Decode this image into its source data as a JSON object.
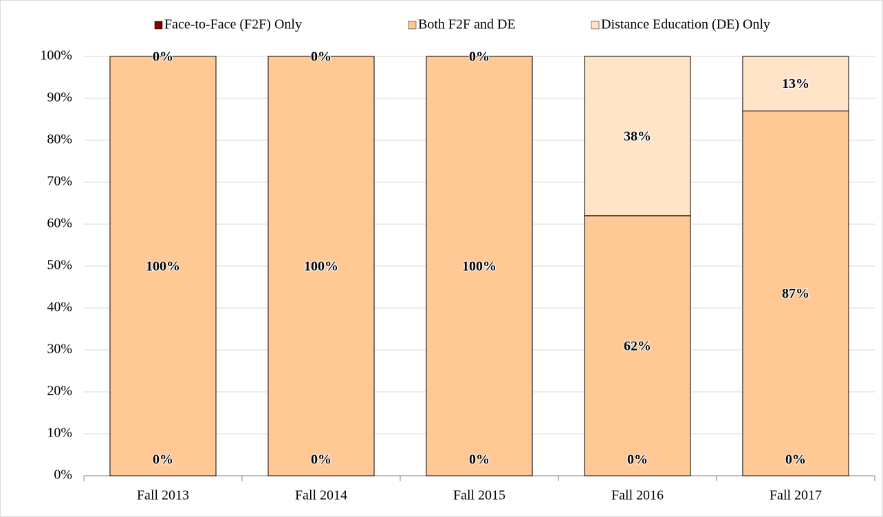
{
  "chart_data": {
    "type": "stacked_bar",
    "categories": [
      "Fall 2013",
      "Fall 2014",
      "Fall 2015",
      "Fall 2016",
      "Fall 2017"
    ],
    "series": [
      {
        "name": "Face-to-Face (F2F) Only",
        "color": "#7f0000",
        "values": [
          0,
          0,
          0,
          0,
          0
        ],
        "value_labels": [
          "0%",
          "0%",
          "0%",
          "0%",
          "0%"
        ]
      },
      {
        "name": "Both F2F and DE",
        "color": "#ffc894",
        "values": [
          100,
          100,
          100,
          62,
          87
        ],
        "value_labels": [
          "100%",
          "100%",
          "100%",
          "62%",
          "87%"
        ]
      },
      {
        "name": "Distance Education (DE) Only",
        "color": "#ffe4c8",
        "values": [
          0,
          0,
          0,
          38,
          13
        ],
        "value_labels": [
          "0%",
          "0%",
          "0%",
          "38%",
          "13%"
        ]
      }
    ],
    "ylim": [
      0,
      100
    ],
    "yticks": [
      {
        "value": 0,
        "label": "0%"
      },
      {
        "value": 10,
        "label": "10%"
      },
      {
        "value": 20,
        "label": "20%"
      },
      {
        "value": 30,
        "label": "30%"
      },
      {
        "value": 40,
        "label": "40%"
      },
      {
        "value": 50,
        "label": "50%"
      },
      {
        "value": 60,
        "label": "60%"
      },
      {
        "value": 70,
        "label": "70%"
      },
      {
        "value": 80,
        "label": "80%"
      },
      {
        "value": 90,
        "label": "90%"
      },
      {
        "value": 100,
        "label": "100%"
      }
    ],
    "grid": true,
    "legend": "top"
  }
}
